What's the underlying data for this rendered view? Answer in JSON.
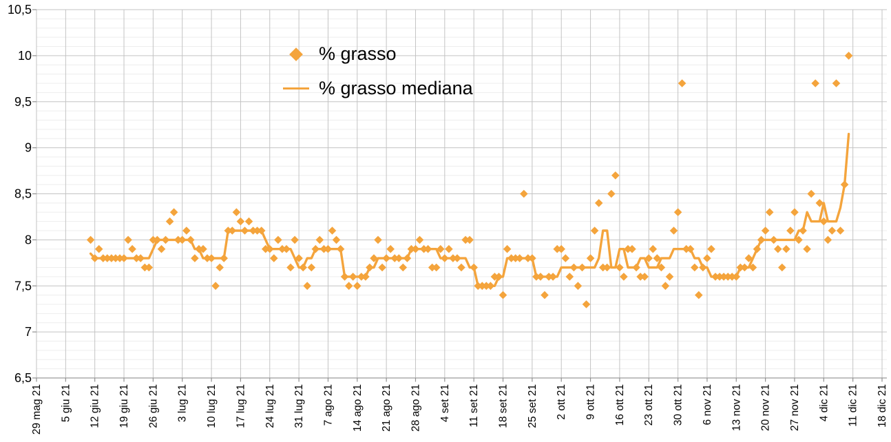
{
  "page": {
    "background": "#ffffff"
  },
  "colors": {
    "series_orange": "#F4A43C",
    "grid_major": "#C3C3C3",
    "grid_minor": "#EDEDED",
    "axis_line": "#9A9A9A",
    "tick_mark": "#8F8F8F",
    "label_text": "#000000"
  },
  "legend": {
    "items": [
      {
        "label": "% grasso",
        "marker": "diamond"
      },
      {
        "label": "% grasso mediana",
        "marker": "line"
      }
    ]
  },
  "chart_data": {
    "type": "scatter",
    "title": "",
    "xlabel": "",
    "ylabel": "",
    "legend_position": "top-center",
    "grid": {
      "vertical_weekly": true,
      "horizontal_major": true,
      "horizontal_minor": true
    },
    "y_axis": {
      "min": 6.5,
      "max": 10.5,
      "major_step": 0.5,
      "minor_step": 0.1,
      "tick_labels": [
        "10,5",
        "10",
        "9,5",
        "9",
        "8,5",
        "8",
        "7,5",
        "7",
        "6,5"
      ]
    },
    "x_axis": {
      "tick_interval_days": 7,
      "days_total": 203,
      "tick_labels": [
        "29 mag 21",
        "5 giu 21",
        "12 giu 21",
        "19 giu 21",
        "26 giu 21",
        "3 lug 21",
        "10 lug 21",
        "17 lug 21",
        "24 lug 21",
        "31 lug 21",
        "7 ago 21",
        "14 ago 21",
        "21 ago 21",
        "28 ago 21",
        "4 set 21",
        "11 set 21",
        "18 set 21",
        "25 set 21",
        "2 ott 21",
        "9 ott 21",
        "16 ott 21",
        "23 ott 21",
        "30 ott 21",
        "6 nov 21",
        "13 nov 21",
        "20 nov 21",
        "27 nov 21",
        "4 dic 21",
        "11 dic 21",
        "18 dic 21"
      ]
    },
    "series": [
      {
        "name": "% grasso",
        "type": "scatter",
        "marker": "diamond",
        "start_day_offset": 13,
        "step_days": 1,
        "values": [
          8.0,
          7.8,
          7.9,
          7.8,
          7.8,
          7.8,
          7.8,
          7.8,
          7.8,
          8.0,
          7.9,
          7.8,
          7.8,
          7.7,
          7.7,
          8.0,
          8.0,
          7.9,
          8.0,
          8.2,
          8.3,
          8.0,
          8.0,
          8.1,
          8.0,
          7.8,
          7.9,
          7.9,
          7.8,
          7.8,
          7.5,
          7.7,
          7.8,
          8.1,
          8.1,
          8.3,
          8.2,
          8.1,
          8.2,
          8.1,
          8.1,
          8.1,
          7.9,
          7.9,
          7.8,
          8.0,
          7.9,
          7.9,
          7.7,
          8.0,
          7.8,
          7.7,
          7.5,
          7.7,
          7.9,
          8.0,
          7.9,
          7.9,
          8.1,
          8.0,
          7.9,
          7.6,
          7.5,
          7.6,
          7.5,
          7.6,
          7.6,
          7.7,
          7.8,
          8.0,
          7.7,
          7.8,
          7.9,
          7.8,
          7.8,
          7.7,
          7.8,
          7.9,
          7.9,
          8.0,
          7.9,
          7.9,
          7.7,
          7.7,
          7.9,
          7.8,
          7.9,
          7.8,
          7.8,
          7.7,
          8.0,
          8.0,
          7.7,
          7.5,
          7.5,
          7.5,
          7.5,
          7.6,
          7.6,
          7.4,
          7.9,
          7.8,
          7.8,
          7.8,
          8.5,
          7.8,
          7.8,
          7.6,
          7.6,
          7.4,
          7.6,
          7.6,
          7.9,
          7.9,
          7.8,
          7.6,
          7.7,
          7.5,
          7.7,
          7.3,
          7.8,
          8.1,
          8.4,
          7.7,
          7.7,
          8.5,
          8.7,
          7.7,
          7.6,
          7.9,
          7.9,
          7.7,
          7.6,
          7.6,
          7.8,
          7.9,
          7.8,
          7.7,
          7.5,
          7.6,
          8.1,
          8.3,
          9.7,
          7.9,
          7.9,
          7.7,
          7.4,
          7.7,
          7.8,
          7.9,
          7.6,
          7.6,
          7.6,
          7.6,
          7.6,
          7.6,
          7.7,
          7.7,
          7.8,
          7.7,
          7.9,
          8.0,
          8.1,
          8.3,
          8.0,
          7.9,
          7.7,
          7.9,
          8.1,
          8.3,
          8.0,
          8.1,
          7.9,
          8.5,
          9.7,
          8.4,
          8.2,
          8.0,
          8.1,
          9.7,
          8.1,
          8.6,
          10.0
        ]
      },
      {
        "name": "% grasso mediana",
        "type": "line",
        "derived_from": "% grasso",
        "derivation": "centered rolling median",
        "median_window": 7
      }
    ]
  }
}
